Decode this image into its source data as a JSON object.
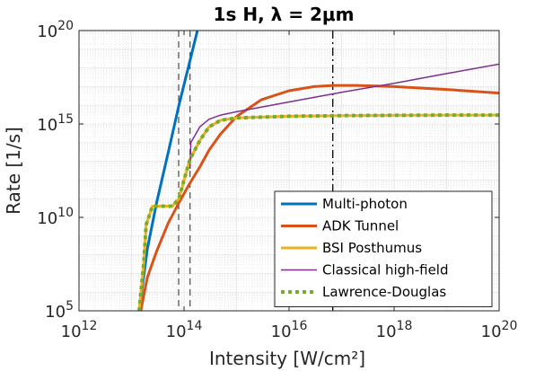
{
  "chart_data": {
    "type": "line",
    "title": "1s H, λ = 2μm",
    "xlabel": "Intensity [W/cm²]",
    "ylabel": "Rate [1/s]",
    "xscale": "log",
    "yscale": "log",
    "xlim": [
      1000000000000.0,
      1e+20
    ],
    "ylim": [
      100000.0,
      1e+20
    ],
    "grid": true,
    "legend_position": "bottom-right",
    "x_ticks": [
      {
        "value": 1000000000000.0,
        "base": "10",
        "exp": "12"
      },
      {
        "value": 100000000000000.0,
        "base": "10",
        "exp": "14"
      },
      {
        "value": 1e+16,
        "base": "10",
        "exp": "16"
      },
      {
        "value": 1e+18,
        "base": "10",
        "exp": "18"
      },
      {
        "value": 1e+20,
        "base": "10",
        "exp": "20"
      }
    ],
    "y_ticks": [
      {
        "value": 100000.0,
        "base": "10",
        "exp": "5"
      },
      {
        "value": 10000000000.0,
        "base": "10",
        "exp": "10"
      },
      {
        "value": 1000000000000000.0,
        "base": "10",
        "exp": "15"
      },
      {
        "value": 1e+20,
        "base": "10",
        "exp": "20"
      }
    ],
    "vlines": [
      {
        "x": 79000000000000.0,
        "style": "dashed",
        "color": "#555555"
      },
      {
        "x": 130000000000000.0,
        "style": "dashed",
        "color": "#555555"
      },
      {
        "x": 6.8e+16,
        "style": "dashdot",
        "color": "#000000"
      }
    ],
    "series": [
      {
        "name": "Multi-photon",
        "color": "#0072BD",
        "width": 3,
        "dash": "",
        "x": [
          14000000000000.0,
          20000000000000.0,
          30000000000000.0,
          50000000000000.0,
          80000000000000.0,
          120000000000000.0,
          180000000000000.0
        ],
        "y": [
          100000.0,
          200000000.0,
          60000000000.0,
          30000000000000.0,
          1e+16,
          1e+18,
          1e+20
        ]
      },
      {
        "name": "ADK Tunnel",
        "color": "#D95319",
        "width": 3,
        "dash": "",
        "x": [
          15000000000000.0,
          20000000000000.0,
          30000000000000.0,
          50000000000000.0,
          80000000000000.0,
          130000000000000.0,
          200000000000000.0,
          300000000000000.0,
          500000000000000.0,
          1000000000000000.0,
          3000000000000000.0,
          1e+16,
          3e+16,
          7e+16,
          2e+17,
          1e+18,
          1e+19,
          1e+20
        ],
        "y": [
          100000.0,
          6000000.0,
          150000000.0,
          5000000000.0,
          60000000000.0,
          700000000000.0,
          5000000000000.0,
          40000000000000.0,
          300000000000000.0,
          2500000000000000.0,
          2e+16,
          6e+16,
          1e+17,
          1.15e+17,
          1.15e+17,
          1e+17,
          7e+16,
          4.5e+16
        ]
      },
      {
        "name": "BSI Posthumus",
        "color": "#EDB120",
        "width": 3,
        "dash": "",
        "x": [
          14000000000000.0,
          17000000000000.0,
          19000000000000.0,
          25000000000000.0,
          40000000000000.0,
          60000000000000.0,
          80000000000000.0,
          100000000000000.0,
          130000000000000.0,
          200000000000000.0,
          300000000000000.0,
          500000000000000.0,
          1000000000000000.0,
          1e+16,
          1e+17,
          1e+18,
          1e+19,
          1e+20
        ],
        "y": [
          100000.0,
          30000000.0,
          4000000000.0,
          40000000000.0,
          40000000000.0,
          40000000000.0,
          100000000000.0,
          1000000000000.0,
          13000000000000.0,
          130000000000000.0,
          700000000000000.0,
          1600000000000000.0,
          2100000000000000.0,
          2600000000000000.0,
          2800000000000000.0,
          2900000000000000.0,
          3000000000000000.0,
          3000000000000000.0
        ]
      },
      {
        "name": "Classical high-field",
        "color": "#7E2F8E",
        "width": 1.5,
        "dash": "",
        "x": [
          130000000000000.0,
          135000000000000.0,
          200000000000000.0,
          300000000000000.0,
          500000000000000.0,
          1000000000000000.0,
          1e+16,
          1e+17,
          1e+18,
          1e+19,
          1e+20
        ],
        "y": [
          4000000000000.0,
          100000000000000.0,
          700000000000000.0,
          1800000000000000.0,
          3000000000000000.0,
          4500000000000000.0,
          1.5e+16,
          5e+16,
          1.5e+17,
          5e+17,
          1.6e+18
        ]
      },
      {
        "name": "Lawrence-Douglas",
        "color": "#77AC30",
        "width": 4,
        "dash": "4,4",
        "x": [
          14000000000000.0,
          17000000000000.0,
          19000000000000.0,
          25000000000000.0,
          40000000000000.0,
          60000000000000.0,
          80000000000000.0,
          100000000000000.0,
          130000000000000.0,
          200000000000000.0,
          300000000000000.0,
          500000000000000.0,
          1000000000000000.0,
          1e+16,
          1e+17,
          1e+18,
          1e+19,
          1e+20
        ],
        "y": [
          100000.0,
          30000000.0,
          4000000000.0,
          40000000000.0,
          40000000000.0,
          40000000000.0,
          100000000000.0,
          1000000000000.0,
          13000000000000.0,
          130000000000000.0,
          700000000000000.0,
          1600000000000000.0,
          2100000000000000.0,
          2600000000000000.0,
          2800000000000000.0,
          2900000000000000.0,
          3000000000000000.0,
          3000000000000000.0
        ]
      }
    ]
  }
}
